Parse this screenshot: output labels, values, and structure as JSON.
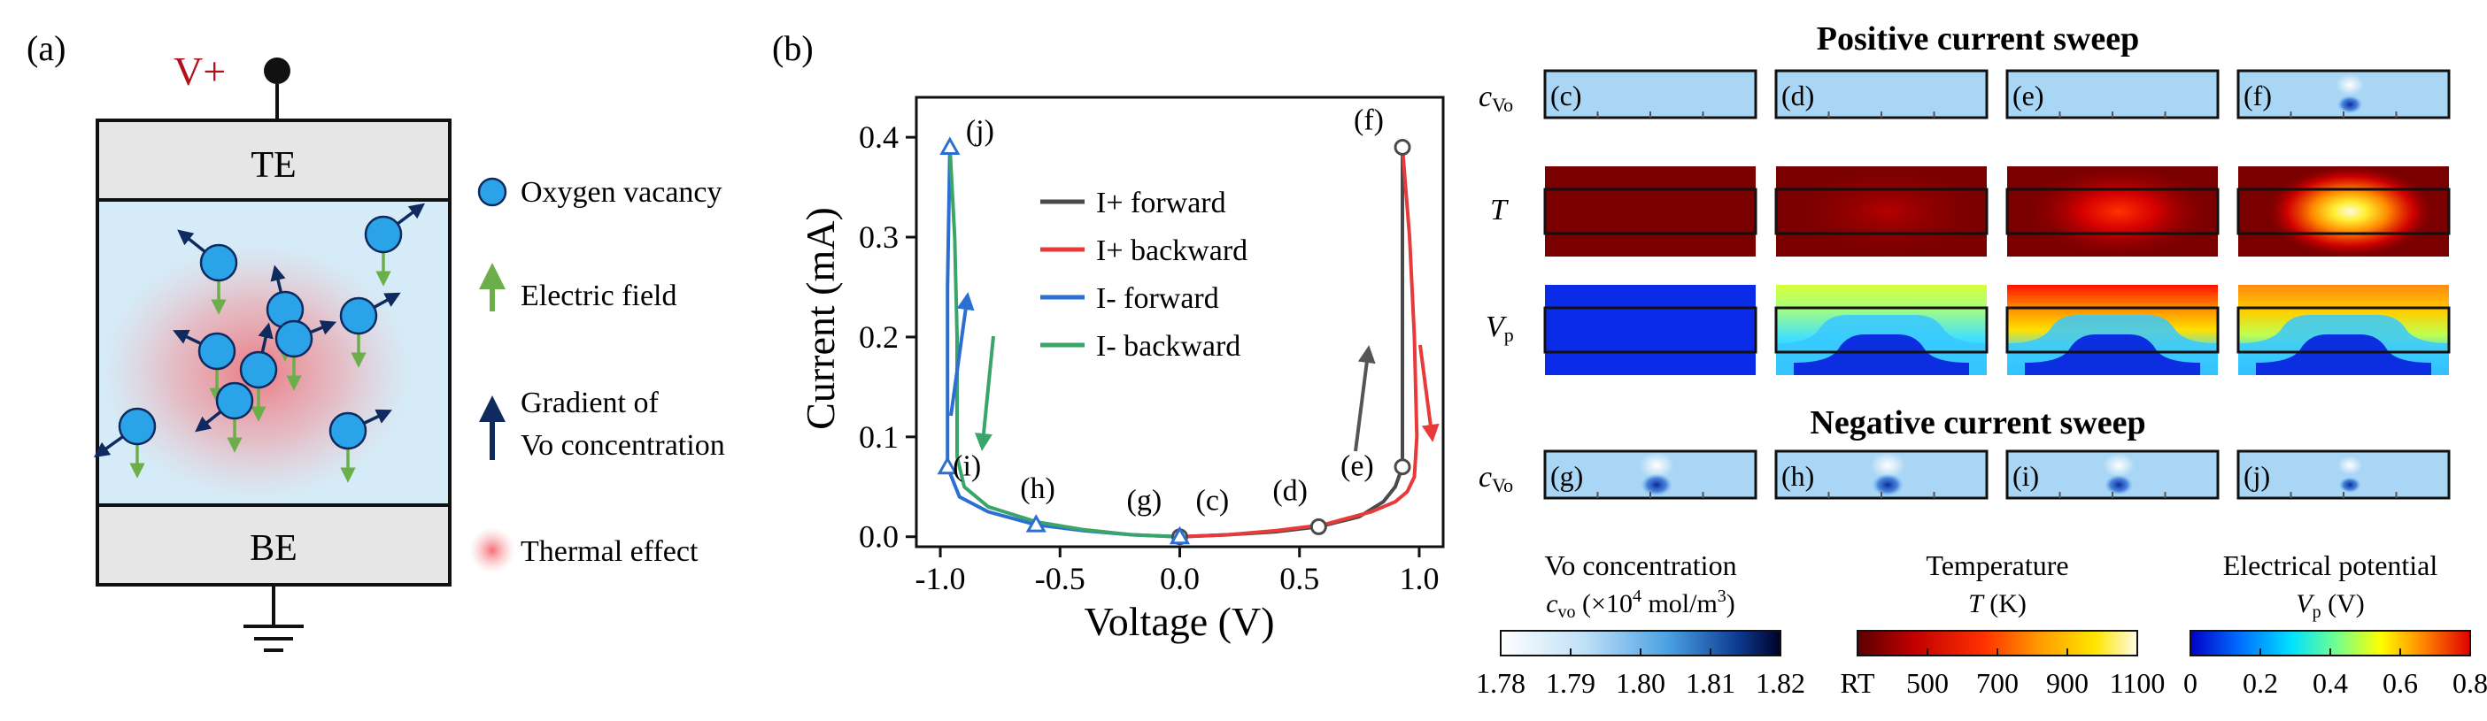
{
  "panel_a": {
    "label": "(a)",
    "voltage_label": "V+",
    "top_electrode": "TE",
    "bottom_electrode": "BE",
    "legend": {
      "oxygen_vacancy": "Oxygen vacancy",
      "electric_field": "Electric field",
      "gradient_line1": "Gradient of",
      "gradient_line2": "Vo concentration",
      "thermal": "Thermal effect"
    },
    "colors": {
      "vacancy": "#2aa3e8",
      "field_arrow": "#6cae4a",
      "gradient_arrow": "#0f2a5e",
      "thermal": "#f2545b",
      "device_fill": "#d5ebf7",
      "electrode_fill": "#e6e6e6",
      "voltage_text": "#b0121b"
    }
  },
  "panel_b": {
    "label": "(b)",
    "chart_data": {
      "type": "line",
      "xlabel": "Voltage (V)",
      "ylabel": "Current (mA)",
      "xlim": [
        -1.1,
        1.1
      ],
      "ylim": [
        -0.01,
        0.44
      ],
      "xticks": [
        "-1.0",
        "-0.5",
        "0.0",
        "0.5",
        "1.0"
      ],
      "yticks": [
        "0.0",
        "0.1",
        "0.2",
        "0.3",
        "0.4"
      ],
      "legend_position": "top-center",
      "series": [
        {
          "name": "I+ forward",
          "color": "#4a4a4a",
          "x": [
            0,
            0.2,
            0.4,
            0.58,
            0.75,
            0.85,
            0.9,
            0.93,
            0.93,
            0.93
          ],
          "y": [
            0,
            0.002,
            0.005,
            0.01,
            0.02,
            0.035,
            0.05,
            0.07,
            0.25,
            0.39
          ]
        },
        {
          "name": "I+ backward",
          "color": "#e83a3a",
          "x": [
            0.93,
            0.96,
            0.98,
            0.99,
            0.98,
            0.95,
            0.9,
            0.8,
            0.6,
            0.4,
            0.2,
            0
          ],
          "y": [
            0.39,
            0.3,
            0.2,
            0.1,
            0.06,
            0.045,
            0.035,
            0.025,
            0.012,
            0.006,
            0.002,
            0
          ]
        },
        {
          "name": "I- forward",
          "color": "#2a6fd1",
          "x": [
            0,
            -0.2,
            -0.4,
            -0.6,
            -0.8,
            -0.92,
            -0.97,
            -0.97,
            -0.96
          ],
          "y": [
            0,
            0.002,
            0.006,
            0.012,
            0.025,
            0.04,
            0.07,
            0.25,
            0.39
          ]
        },
        {
          "name": "I- backward",
          "color": "#3aa56a",
          "x": [
            -0.96,
            -0.94,
            -0.93,
            -0.93,
            -0.9,
            -0.8,
            -0.6,
            -0.4,
            -0.2,
            0
          ],
          "y": [
            0.39,
            0.3,
            0.2,
            0.08,
            0.05,
            0.03,
            0.015,
            0.007,
            0.002,
            0
          ]
        }
      ],
      "markers": [
        {
          "label": "(f)",
          "x": 0.93,
          "y": 0.39,
          "shape": "circle",
          "color": "#4a4a4a"
        },
        {
          "label": "(e)",
          "x": 0.93,
          "y": 0.07,
          "shape": "circle",
          "color": "#4a4a4a"
        },
        {
          "label": "(d)",
          "x": 0.58,
          "y": 0.01,
          "shape": "circle",
          "color": "#4a4a4a"
        },
        {
          "label": "(c)",
          "x": 0.0,
          "y": 0.0,
          "shape": "circle",
          "color": "#4a4a4a"
        },
        {
          "label": "(g)",
          "x": 0.0,
          "y": 0.0,
          "shape": "triangle",
          "color": "#2a6fd1"
        },
        {
          "label": "(h)",
          "x": -0.6,
          "y": 0.012,
          "shape": "triangle",
          "color": "#2a6fd1"
        },
        {
          "label": "(i)",
          "x": -0.97,
          "y": 0.07,
          "shape": "triangle",
          "color": "#2a6fd1"
        },
        {
          "label": "(j)",
          "x": -0.96,
          "y": 0.39,
          "shape": "triangle",
          "color": "#2a6fd1"
        }
      ]
    }
  },
  "panel_c": {
    "positive_title": "Positive current sweep",
    "negative_title": "Negative current sweep",
    "row_labels": {
      "cvo": "c",
      "cvo_sub": "Vo",
      "T": "T",
      "vp": "V",
      "vp_sub": "p"
    },
    "positive_labels": [
      "(c)",
      "(d)",
      "(e)",
      "(f)"
    ],
    "negative_labels": [
      "(g)",
      "(h)",
      "(i)",
      "(j)"
    ],
    "colorbars": [
      {
        "title": "Vo concentration",
        "subtitle_sym": "c",
        "subtitle_sub": "vo",
        "subtitle_unit": " (×10",
        "subtitle_exp": "4",
        "subtitle_tail": " mol/m",
        "subtitle_exp2": "3",
        "subtitle_end": ")",
        "ticks": [
          "1.78",
          "1.79",
          "1.80",
          "1.81",
          "1.82"
        ],
        "colors": [
          "#ffffff",
          "#aed8f5",
          "#3e9be0",
          "#0a2a6e",
          "#000020"
        ]
      },
      {
        "title": "Temperature",
        "subtitle_sym": "T",
        "subtitle_tail": " (K)",
        "ticks": [
          "RT",
          "500",
          "700",
          "900",
          "1100"
        ],
        "colors": [
          "#5a0000",
          "#c00000",
          "#ff2a00",
          "#ff9a00",
          "#ffe300",
          "#fffbe0"
        ]
      },
      {
        "title": "Electrical potential",
        "subtitle_sym": "V",
        "subtitle_sub": "p",
        "subtitle_tail": " (V)",
        "ticks": [
          "0",
          "0.2",
          "0.4",
          "0.6",
          "0.8"
        ],
        "colors": [
          "#0000d0",
          "#0080ff",
          "#00e0ff",
          "#80ff80",
          "#ffff00",
          "#ff8000",
          "#e00000"
        ]
      }
    ]
  }
}
